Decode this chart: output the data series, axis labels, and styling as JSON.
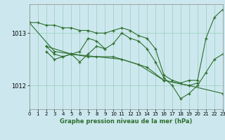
{
  "title": "Graphe pression niveau de la mer (hPa)",
  "background_color": "#cce8ee",
  "grid_color": "#99ccbb",
  "line_color": "#2d6e2d",
  "xlim": [
    0,
    23
  ],
  "ylim": [
    1011.55,
    1013.55
  ],
  "yticks": [
    1012,
    1013
  ],
  "xticks": [
    0,
    1,
    2,
    3,
    4,
    5,
    6,
    7,
    8,
    9,
    10,
    11,
    12,
    13,
    14,
    15,
    16,
    17,
    18,
    19,
    20,
    21,
    22,
    23
  ],
  "series": [
    {
      "x": [
        0,
        1,
        2,
        3,
        4,
        5,
        6,
        7,
        8,
        9,
        10,
        11,
        12,
        13,
        14,
        15,
        16,
        17,
        18,
        19,
        20,
        21,
        22,
        23
      ],
      "y": [
        1013.2,
        1013.2,
        1013.15,
        1013.15,
        1013.1,
        1013.1,
        1013.05,
        1013.05,
        1013.0,
        1013.0,
        1013.05,
        1013.1,
        1013.05,
        1012.95,
        1012.9,
        1012.7,
        1012.2,
        1012.1,
        1012.05,
        1012.1,
        1012.1,
        1012.9,
        1013.3,
        1013.45
      ]
    },
    {
      "x": [
        2,
        3,
        4,
        5,
        6,
        7,
        8,
        9,
        10,
        11,
        12,
        13,
        14,
        15,
        16,
        17,
        18,
        19,
        20,
        21,
        22,
        23
      ],
      "y": [
        1012.75,
        1012.6,
        1012.55,
        1012.6,
        1012.65,
        1012.9,
        1012.85,
        1012.7,
        1012.8,
        1013.0,
        1012.9,
        1012.85,
        1012.7,
        1012.45,
        1012.15,
        1012.0,
        1011.75,
        1011.85,
        1012.0,
        1012.25,
        1012.5,
        1012.6
      ]
    },
    {
      "x": [
        0,
        3,
        7,
        10,
        13,
        16,
        19,
        23
      ],
      "y": [
        1013.2,
        1012.65,
        1012.55,
        1012.55,
        1012.4,
        1012.1,
        1012.0,
        1011.85
      ]
    },
    {
      "x": [
        2,
        5,
        8,
        11,
        14,
        16,
        19,
        20
      ],
      "y": [
        1012.75,
        1012.6,
        1012.55,
        1012.5,
        1012.35,
        1012.1,
        1012.0,
        1012.05
      ]
    },
    {
      "x": [
        2,
        3,
        4,
        5,
        6,
        7,
        8,
        9
      ],
      "y": [
        1012.65,
        1012.5,
        1012.55,
        1012.6,
        1012.45,
        1012.6,
        1012.75,
        1012.7
      ]
    }
  ]
}
